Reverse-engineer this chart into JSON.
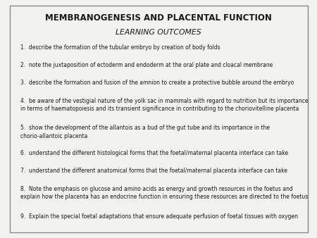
{
  "title": "MEMBRANOGENESIS AND PLACENTAL FUNCTION",
  "subtitle": "LEARNING OUTCOMES",
  "items": [
    "1.  describe the formation of the tubular embryo by creation of body folds",
    "2.  note the juxtaposition of ectoderm and endoderm at the oral plate and cloacal membrane",
    "3.  describe the formation and fusion of the amnion to create a protective bubble around the embryo",
    "4.  be aware of the vestigial nature of the yolk sac in mammals with regard to nutrition but its importance\nin terms of haematopoiesis and its transient significance in contributing to the choriovitelline placenta",
    "5.  show the development of the allantois as a bud of the gut tube and its importance in the\nchorio-allantoic placenta",
    "6.  understand the different histological forms that the foetal/maternal placenta interface can take",
    "7.  understand the different anatomical forms that the foetal/maternal placenta interface can take",
    "8.  Note the emphasis on glucose and amino acids as energy and growth resources in the foetus and\nexplain how the placenta has an endocrine function in ensuring these resources are directed to the foetus",
    "9.  Explain the special foetal adaptations that ensure adequate perfusion of foetal tissues with oxygen"
  ],
  "bg_color": "#f2f2ee",
  "border_color": "#888888",
  "text_color": "#1a1a1a",
  "title_fontsize": 8.5,
  "subtitle_fontsize": 7.8,
  "item_fontsize": 5.5,
  "fig_width": 4.5,
  "fig_height": 3.38,
  "dpi": 100
}
